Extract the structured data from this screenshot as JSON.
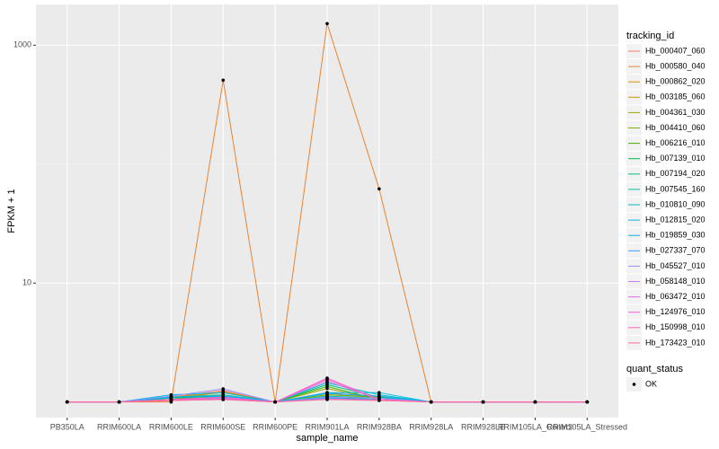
{
  "chart_data": {
    "type": "line",
    "x_label": "sample_name",
    "y_label": "FPKM + 1",
    "log_scale_y": true,
    "grid": true,
    "categories": [
      "PB350LA",
      "RRIM600LA",
      "RRIM600LE",
      "RRIM600SE",
      "RRIM600PE",
      "RRIM901LA",
      "RRIM928BA",
      "RRIM928LA",
      "RRIM928LE",
      "RRIM105LA_Control",
      "RRIM105LA_Stressed"
    ],
    "ylim": [
      0.74,
      2200
    ],
    "yticks": [
      10,
      1000
    ],
    "legend_title": "tracking_id",
    "point_legend_title": "quant_status",
    "point_legend_label": "OK",
    "point_color": "#000000",
    "series": [
      {
        "name": "Hb_000407_060",
        "color": "#F8766D",
        "values": [
          1,
          1,
          1.1,
          1.25,
          1,
          1.2,
          1.1,
          1,
          1,
          1,
          1
        ]
      },
      {
        "name": "Hb_000580_040",
        "color": "#EA8331",
        "values": [
          1,
          1,
          1,
          508,
          1,
          1520,
          62,
          1,
          1,
          1,
          1
        ]
      },
      {
        "name": "Hb_000862_020",
        "color": "#D89000",
        "values": [
          1,
          1,
          1.05,
          1.22,
          1,
          1.1,
          1.05,
          1,
          1,
          1,
          1
        ]
      },
      {
        "name": "Hb_003185_060",
        "color": "#C09B00",
        "values": [
          1,
          1,
          1.1,
          1.2,
          1,
          1.15,
          1.1,
          1,
          1,
          1,
          1
        ]
      },
      {
        "name": "Hb_004361_030",
        "color": "#A3A500",
        "values": [
          1,
          1,
          1.05,
          1.15,
          1,
          1.3,
          1.05,
          1,
          1,
          1,
          1
        ]
      },
      {
        "name": "Hb_004410_060",
        "color": "#7CAE00",
        "values": [
          1,
          1,
          1.1,
          1.1,
          1,
          1.15,
          1.1,
          1,
          1,
          1,
          1
        ]
      },
      {
        "name": "Hb_006216_010",
        "color": "#39B600",
        "values": [
          1,
          1,
          1.05,
          1.1,
          1,
          1.35,
          1.05,
          1,
          1,
          1,
          1
        ]
      },
      {
        "name": "Hb_007139_010",
        "color": "#00BB4E",
        "values": [
          1,
          1,
          1.05,
          1.08,
          1,
          1.1,
          1.05,
          1,
          1,
          1,
          1
        ]
      },
      {
        "name": "Hb_007194_020",
        "color": "#00BF7D",
        "values": [
          1,
          1,
          1.08,
          1.12,
          1,
          1.4,
          1.1,
          1,
          1,
          1,
          1
        ]
      },
      {
        "name": "Hb_007545_160",
        "color": "#00C1A3",
        "values": [
          1,
          1,
          1.05,
          1.1,
          1,
          1.12,
          1.08,
          1,
          1,
          1,
          1
        ]
      },
      {
        "name": "Hb_010810_090",
        "color": "#00BFC4",
        "values": [
          1,
          1,
          1.1,
          1.15,
          1,
          1.45,
          1.15,
          1,
          1,
          1,
          1
        ]
      },
      {
        "name": "Hb_012815_020",
        "color": "#00BAE0",
        "values": [
          1,
          1,
          1.15,
          1.2,
          1,
          1.2,
          1.2,
          1,
          1,
          1,
          1
        ]
      },
      {
        "name": "Hb_019859_030",
        "color": "#00B0F6",
        "values": [
          1,
          1,
          1.1,
          1.12,
          1,
          1.18,
          1.12,
          1,
          1,
          1,
          1
        ]
      },
      {
        "name": "Hb_027337_070",
        "color": "#35A2FF",
        "values": [
          1,
          1,
          1.05,
          1.06,
          1,
          1.08,
          1.05,
          1,
          1,
          1,
          1
        ]
      },
      {
        "name": "Hb_045527_010",
        "color": "#9590FF",
        "values": [
          1,
          1,
          1.12,
          1.29,
          1,
          1.1,
          1.08,
          1,
          1,
          1,
          1
        ]
      },
      {
        "name": "Hb_058148_010",
        "color": "#C77CFF",
        "values": [
          1,
          1,
          1.05,
          1.08,
          1,
          1.5,
          1.05,
          1,
          1,
          1,
          1
        ]
      },
      {
        "name": "Hb_063472_010",
        "color": "#E76BF3",
        "values": [
          1,
          1,
          1.03,
          1.05,
          1,
          1.06,
          1.04,
          1,
          1,
          1,
          1
        ]
      },
      {
        "name": "Hb_124976_010",
        "color": "#FA62DB",
        "values": [
          1,
          1,
          1.05,
          1.1,
          1,
          1.59,
          1.05,
          1,
          1,
          1,
          1
        ]
      },
      {
        "name": "Hb_150998_010",
        "color": "#FF62BC",
        "values": [
          1,
          1,
          1.04,
          1.06,
          1,
          1.55,
          1.04,
          1,
          1,
          1,
          1
        ]
      },
      {
        "name": "Hb_173423_010",
        "color": "#FF6C91",
        "values": [
          1,
          1,
          1.03,
          1.05,
          1,
          1.05,
          1.03,
          1,
          1,
          1,
          1
        ]
      }
    ]
  }
}
